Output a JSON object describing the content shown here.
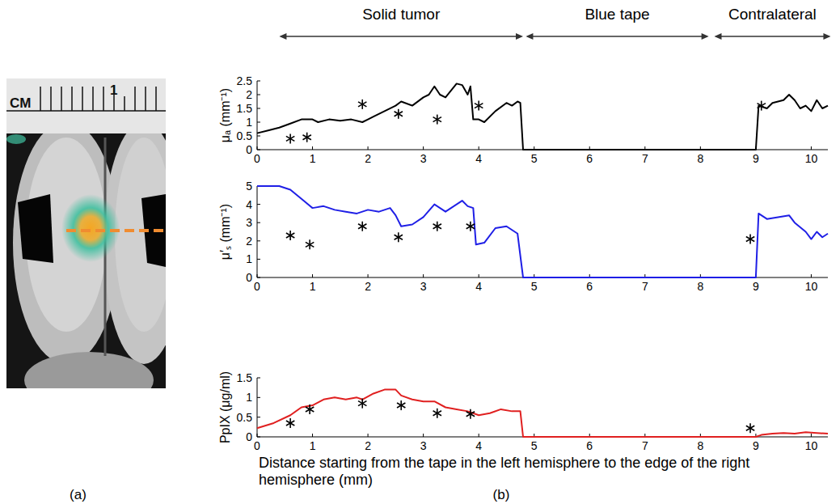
{
  "panel_labels": [
    "(a)",
    "(b)"
  ],
  "image": {
    "ruler_label": "CM",
    "ruler_number": "1"
  },
  "chart_data": [
    {
      "type": "line",
      "ylabel": "μₐ (mm⁻¹)",
      "xlim": [
        0,
        10.3
      ],
      "xticks": [
        0,
        1,
        2,
        3,
        4,
        5,
        6,
        7,
        8,
        9,
        10
      ],
      "ylim": [
        0,
        2.5
      ],
      "yticks": [
        0,
        0.5,
        1,
        1.5,
        2,
        2.5
      ],
      "annotations": [
        {
          "text": "Solid tumor",
          "x": [
            0.4,
            4.8
          ]
        },
        {
          "text": "Blue tape",
          "x": [
            4.85,
            8.15
          ]
        },
        {
          "text": "Contralateral",
          "x": [
            8.25,
            10.35
          ]
        }
      ],
      "series": [
        {
          "type": "line",
          "color": "#000000",
          "x": [
            0,
            0.2,
            0.4,
            0.6,
            0.8,
            1.0,
            1.1,
            1.3,
            1.5,
            1.7,
            1.9,
            2.0,
            2.1,
            2.3,
            2.5,
            2.6,
            2.8,
            3.0,
            3.1,
            3.2,
            3.3,
            3.4,
            3.6,
            3.7,
            3.8,
            3.85,
            3.9,
            4.0,
            4.1,
            4.3,
            4.5,
            4.6,
            4.7,
            4.75,
            4.8,
            9.0,
            9.05,
            9.2,
            9.3,
            9.5,
            9.6,
            9.7,
            9.8,
            9.9,
            10.0,
            10.1,
            10.2,
            10.3
          ],
          "values": [
            0.6,
            0.7,
            0.8,
            0.95,
            1.1,
            1.1,
            1.0,
            1.1,
            1.05,
            1.1,
            1.0,
            1.1,
            1.2,
            1.4,
            1.6,
            1.75,
            1.6,
            1.9,
            2.0,
            2.3,
            2.0,
            1.9,
            2.4,
            2.35,
            2.0,
            2.3,
            1.1,
            1.1,
            1.0,
            1.4,
            1.7,
            1.6,
            1.75,
            1.7,
            0,
            0,
            1.6,
            1.5,
            1.7,
            1.8,
            2.0,
            1.8,
            1.5,
            1.6,
            1.4,
            1.8,
            1.5,
            1.6
          ]
        },
        {
          "type": "scatter",
          "marker": "asterisk",
          "color": "#000000",
          "x": [
            0.6,
            0.9,
            1.9,
            2.55,
            3.25,
            4.0,
            9.1
          ],
          "values": [
            0.4,
            0.45,
            1.65,
            1.3,
            1.1,
            1.6,
            1.6
          ]
        }
      ]
    },
    {
      "type": "line",
      "ylabel": "μ′ₛ (mm⁻¹)",
      "xlim": [
        0,
        10.3
      ],
      "xticks": [
        0,
        1,
        2,
        3,
        4,
        5,
        6,
        7,
        8,
        9,
        10
      ],
      "ylim": [
        0,
        5
      ],
      "yticks": [
        0,
        1,
        2,
        3,
        4,
        5
      ],
      "series": [
        {
          "type": "line",
          "color": "#1f1fe6",
          "x": [
            0,
            0.4,
            0.6,
            0.8,
            1.0,
            1.2,
            1.4,
            1.6,
            1.8,
            2.0,
            2.2,
            2.4,
            2.5,
            2.6,
            2.8,
            3.0,
            3.2,
            3.4,
            3.5,
            3.7,
            3.8,
            3.9,
            3.95,
            4.1,
            4.3,
            4.5,
            4.7,
            4.8,
            9.0,
            9.05,
            9.2,
            9.4,
            9.6,
            9.7,
            9.9,
            10.0,
            10.1,
            10.2,
            10.3
          ],
          "values": [
            5,
            5,
            4.8,
            4.3,
            3.8,
            3.9,
            3.7,
            3.6,
            3.5,
            3.7,
            3.6,
            3.8,
            3.4,
            2.8,
            2.9,
            3.3,
            4.0,
            3.6,
            3.8,
            4.2,
            3.9,
            3.8,
            1.8,
            1.9,
            2.7,
            2.8,
            2.4,
            0,
            0,
            3.5,
            3.2,
            3.3,
            3.4,
            3.0,
            2.5,
            2.1,
            2.5,
            2.2,
            2.4
          ]
        },
        {
          "type": "scatter",
          "marker": "asterisk",
          "color": "#000000",
          "x": [
            0.6,
            0.95,
            1.9,
            2.55,
            3.25,
            3.85,
            8.9
          ],
          "values": [
            2.3,
            1.8,
            2.8,
            2.2,
            2.8,
            2.8,
            2.1
          ]
        }
      ]
    },
    {
      "type": "line",
      "ylabel": "PpIX (μg/ml)",
      "xlabel": "Distance starting from the tape in the left hemisphere to the edge of the right hemisphere (mm)",
      "xlim": [
        0,
        10.3
      ],
      "xticks": [
        0,
        1,
        2,
        3,
        4,
        5,
        6,
        7,
        8,
        9,
        10
      ],
      "ylim": [
        0,
        1.5
      ],
      "yticks": [
        0,
        0.5,
        1,
        1.5
      ],
      "series": [
        {
          "type": "line",
          "color": "#e02020",
          "x": [
            0,
            0.3,
            0.6,
            0.8,
            1.0,
            1.2,
            1.4,
            1.6,
            1.8,
            1.9,
            2.1,
            2.3,
            2.5,
            2.6,
            2.8,
            3.0,
            3.2,
            3.4,
            3.6,
            3.8,
            4.0,
            4.2,
            4.4,
            4.6,
            4.75,
            4.8,
            9.0,
            9.1,
            9.3,
            9.5,
            9.7,
            9.9,
            10.1,
            10.3
          ],
          "values": [
            0.22,
            0.35,
            0.55,
            0.75,
            0.8,
            0.95,
            1.0,
            0.95,
            1.0,
            0.95,
            1.1,
            1.2,
            1.2,
            1.05,
            0.95,
            0.9,
            0.9,
            0.75,
            0.7,
            0.65,
            0.55,
            0.6,
            0.7,
            0.65,
            0.65,
            0,
            0,
            0.05,
            0.08,
            0.1,
            0.08,
            0.12,
            0.1,
            0.08
          ]
        },
        {
          "type": "scatter",
          "marker": "asterisk",
          "color": "#000000",
          "x": [
            0.6,
            0.95,
            1.9,
            2.6,
            3.25,
            3.85,
            8.9
          ],
          "values": [
            0.35,
            0.7,
            0.85,
            0.8,
            0.6,
            0.58,
            0.22
          ]
        }
      ]
    }
  ]
}
